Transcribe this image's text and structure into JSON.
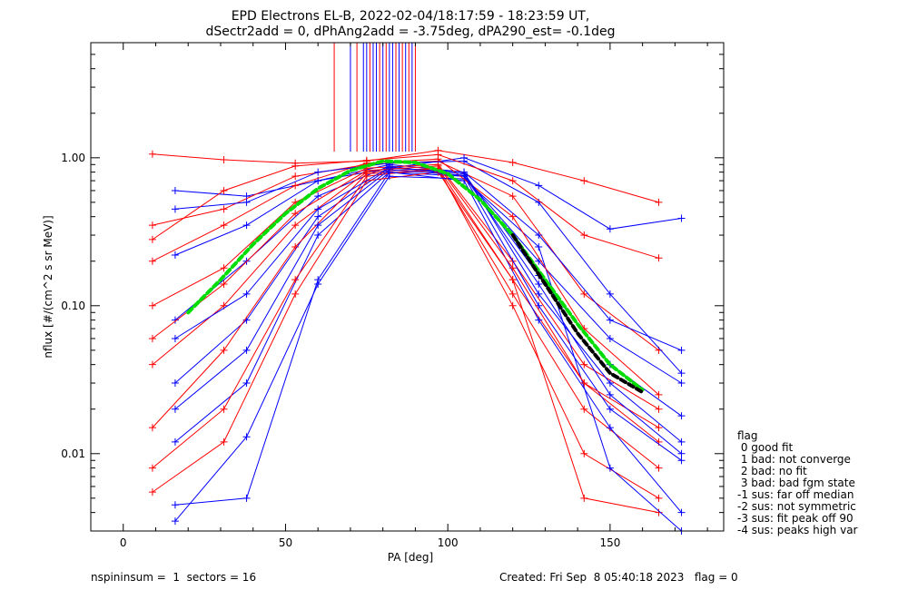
{
  "chart_data": {
    "type": "line",
    "title": "EPD Electrons EL-B, 2022-02-04/18:17:59 - 18:23:59 UT,",
    "subtitle": "dSectr2add = 0, dPhAng2add = -3.75deg, dPA290_est=  -0.1deg",
    "xlabel": "PA [deg]",
    "ylabel": "nflux [#/(cm^2 s sr MeV)]",
    "xlim": [
      -10,
      185
    ],
    "ylim": [
      0.003,
      6
    ],
    "yscale": "log",
    "x_ticks": [
      0,
      50,
      100,
      150
    ],
    "x_tick_labels": [
      "0",
      "50",
      "100",
      "150"
    ],
    "y_ticks": [
      1.0,
      0.1,
      0.01
    ],
    "y_tick_labels": [
      "1.00",
      "0.10",
      "0.01"
    ],
    "series": [
      {
        "name": "",
        "color": "#ff0000",
        "x": [
          9,
          31,
          53,
          75,
          97,
          120,
          142,
          165
        ],
        "y": [
          1.06,
          0.97,
          0.92,
          0.95,
          1.12,
          0.93,
          0.7,
          0.5
        ]
      },
      {
        "name": "",
        "color": "#0000ff",
        "x": [
          16,
          38,
          60,
          82,
          105,
          128,
          150,
          172
        ],
        "y": [
          0.6,
          0.55,
          0.7,
          0.85,
          1.0,
          0.65,
          0.33,
          0.39
        ]
      },
      {
        "name": "",
        "color": "#ff0000",
        "x": [
          9,
          31,
          53,
          75,
          97,
          120,
          142,
          165
        ],
        "y": [
          0.35,
          0.45,
          0.75,
          0.9,
          0.95,
          0.55,
          0.12,
          0.05
        ]
      },
      {
        "name": "",
        "color": "#0000ff",
        "x": [
          16,
          38,
          60,
          82,
          105,
          128,
          150,
          172
        ],
        "y": [
          0.22,
          0.35,
          0.7,
          0.9,
          0.8,
          0.3,
          0.08,
          0.05
        ]
      },
      {
        "name": "",
        "color": "#ff0000",
        "x": [
          9,
          31,
          53,
          75,
          97,
          120,
          142,
          165
        ],
        "y": [
          0.1,
          0.18,
          0.5,
          0.85,
          0.9,
          0.2,
          0.04,
          0.02
        ]
      },
      {
        "name": "",
        "color": "#0000ff",
        "x": [
          16,
          38,
          60,
          82,
          105,
          128,
          150,
          172
        ],
        "y": [
          0.08,
          0.2,
          0.55,
          0.88,
          0.75,
          0.2,
          0.06,
          0.03
        ]
      },
      {
        "name": "",
        "color": "#ff0000",
        "x": [
          9,
          31,
          53,
          75,
          97,
          120,
          142,
          165
        ],
        "y": [
          0.04,
          0.1,
          0.35,
          0.8,
          0.85,
          0.15,
          0.03,
          0.012
        ]
      },
      {
        "name": "",
        "color": "#0000ff",
        "x": [
          16,
          38,
          60,
          82,
          105,
          128,
          150,
          172
        ],
        "y": [
          0.03,
          0.08,
          0.4,
          0.85,
          0.8,
          0.12,
          0.03,
          0.012
        ]
      },
      {
        "name": "",
        "color": "#ff0000",
        "x": [
          9,
          31,
          53,
          75,
          97,
          120,
          142,
          165
        ],
        "y": [
          0.015,
          0.05,
          0.25,
          0.78,
          0.82,
          0.12,
          0.02,
          0.008
        ]
      },
      {
        "name": "",
        "color": "#0000ff",
        "x": [
          16,
          38,
          60,
          82,
          105,
          128,
          150,
          172
        ],
        "y": [
          0.012,
          0.03,
          0.3,
          0.8,
          0.75,
          0.1,
          0.02,
          0.009
        ]
      },
      {
        "name": "",
        "color": "#ff0000",
        "x": [
          9,
          31,
          53,
          75,
          97,
          120,
          142,
          165
        ],
        "y": [
          0.008,
          0.02,
          0.15,
          0.75,
          0.85,
          0.1,
          0.01,
          0.005
        ]
      },
      {
        "name": "",
        "color": "#0000ff",
        "x": [
          16,
          38,
          60,
          82,
          105,
          128,
          150,
          172
        ],
        "y": [
          0.0045,
          0.005,
          0.15,
          0.8,
          0.7,
          0.08,
          0.015,
          0.004
        ]
      },
      {
        "name": "",
        "color": "#ff0000",
        "x": [
          9,
          31,
          53,
          75,
          97,
          120,
          142,
          165
        ],
        "y": [
          0.0055,
          0.012,
          0.12,
          0.7,
          0.8,
          0.15,
          0.005,
          0.004
        ]
      },
      {
        "name": "",
        "color": "#0000ff",
        "x": [
          16,
          38,
          60,
          82,
          105,
          128,
          150,
          172
        ],
        "y": [
          0.0035,
          0.013,
          0.14,
          0.75,
          0.72,
          0.25,
          0.008,
          0.003
        ]
      },
      {
        "name": "",
        "color": "#ff0000",
        "x": [
          9,
          31,
          53,
          75,
          97,
          120,
          142,
          165
        ],
        "y": [
          0.2,
          0.35,
          0.65,
          0.92,
          0.98,
          0.4,
          0.07,
          0.025
        ]
      },
      {
        "name": "",
        "color": "#0000ff",
        "x": [
          16,
          38,
          60,
          82,
          105,
          128,
          150,
          172
        ],
        "y": [
          0.45,
          0.5,
          0.8,
          0.92,
          0.95,
          0.5,
          0.12,
          0.035
        ]
      },
      {
        "name": "",
        "color": "#ff0000",
        "x": [
          9,
          31,
          53,
          75,
          97,
          120,
          142,
          165
        ],
        "y": [
          0.28,
          0.6,
          0.88,
          0.96,
          1.05,
          0.7,
          0.3,
          0.21
        ]
      },
      {
        "name": "",
        "color": "#0000ff",
        "x": [
          16,
          38,
          60,
          82,
          105,
          128,
          150,
          172
        ],
        "y": [
          0.06,
          0.12,
          0.45,
          0.86,
          0.78,
          0.16,
          0.04,
          0.018
        ]
      },
      {
        "name": "",
        "color": "#ff0000",
        "x": [
          9,
          31,
          53,
          75,
          97,
          120,
          142,
          165
        ],
        "y": [
          0.06,
          0.14,
          0.42,
          0.82,
          0.88,
          0.18,
          0.03,
          0.015
        ]
      },
      {
        "name": "",
        "color": "#0000ff",
        "x": [
          16,
          38,
          60,
          82,
          105,
          128,
          150,
          172
        ],
        "y": [
          0.02,
          0.05,
          0.35,
          0.83,
          0.76,
          0.14,
          0.025,
          0.01
        ]
      }
    ],
    "fit_curves": [
      {
        "name": "",
        "color": "#00dd00",
        "style": "dashed",
        "x": [
          20,
          30,
          40,
          50,
          60,
          70,
          80,
          90,
          100,
          110,
          120,
          130,
          140,
          150,
          160
        ],
        "y": [
          0.09,
          0.15,
          0.26,
          0.42,
          0.62,
          0.82,
          0.95,
          0.93,
          0.78,
          0.52,
          0.3,
          0.15,
          0.075,
          0.04,
          0.027
        ]
      },
      {
        "name": "",
        "color": "#000000",
        "style": "dashed",
        "x": [
          120,
          130,
          140,
          150,
          160
        ],
        "y": [
          0.3,
          0.14,
          0.065,
          0.035,
          0.026
        ]
      }
    ],
    "spike_lines": {
      "x": [
        65,
        70,
        72,
        74,
        75,
        76,
        77,
        78,
        79,
        80,
        81,
        82,
        83,
        84,
        85,
        86,
        87,
        88,
        89,
        90
      ],
      "colors": [
        "#ff0000",
        "#0000ff",
        "#ff0000",
        "#0000ff",
        "#0000ff",
        "#ff0000",
        "#0000ff",
        "#0000ff",
        "#ff0000",
        "#0000ff",
        "#ff0000",
        "#0000ff",
        "#0000ff",
        "#ff0000",
        "#0000ff",
        "#ff0000",
        "#0000ff",
        "#ff0000",
        "#0000ff",
        "#ff0000"
      ],
      "y_from": 1.1
    },
    "legend": {
      "placement": "right-bottom",
      "title": "flag",
      "items": [
        " 0 good fit",
        " 1 bad: not converge",
        " 2 bad: no fit",
        " 3 bad: bad fgm state",
        "-1 sus: far off median",
        "-2 sus: not symmetric",
        "-3 sus: fit peak off 90",
        "-4 sus: peaks high var"
      ]
    }
  },
  "footer": {
    "left": "nspininsum =  1  sectors = 16",
    "right": "Created: Fri Sep  8 05:40:18 2023   flag = 0"
  }
}
